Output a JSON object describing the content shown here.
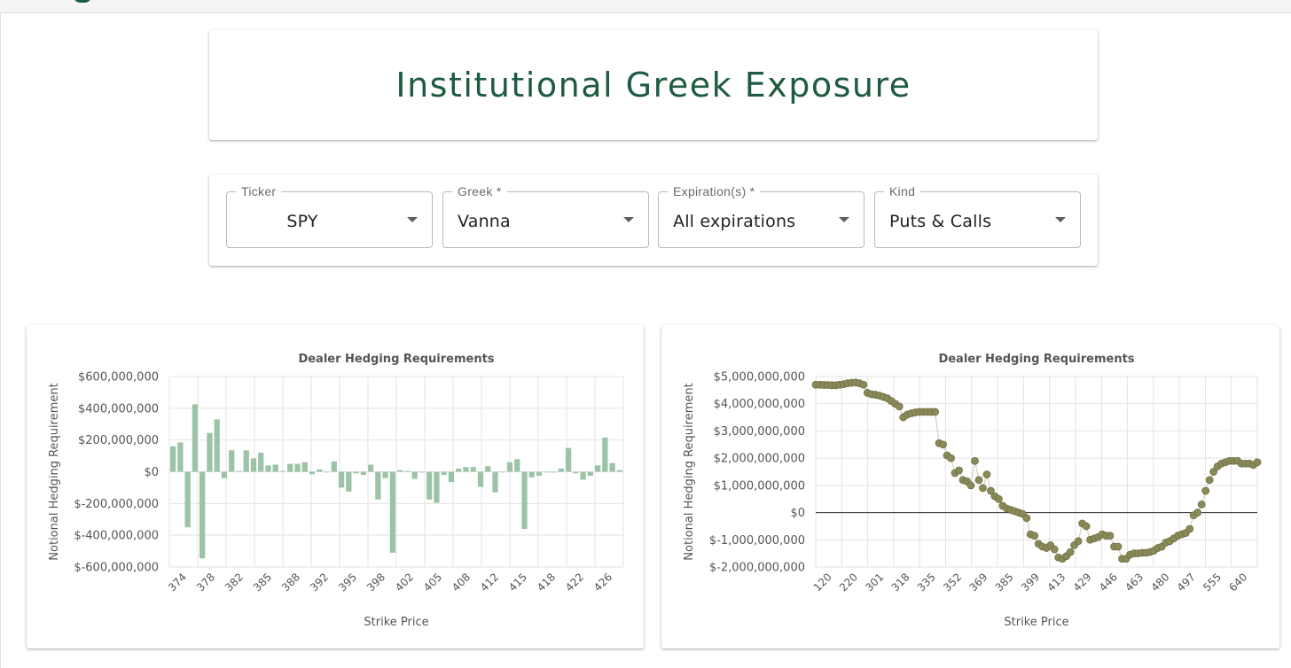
{
  "header": {
    "title": "Institutional Greek Exposure"
  },
  "filters": [
    {
      "label": "Ticker",
      "value": "SPY"
    },
    {
      "label": "Greek *",
      "value": "Vanna"
    },
    {
      "label": "Expiration(s) *",
      "value": "All expirations"
    },
    {
      "label": "Kind",
      "value": "Puts & Calls"
    }
  ],
  "colors": {
    "brand": "#1f5b40",
    "bar": "#9dc3a7",
    "dot": "#8a8a58",
    "grid": "#e3e3e3"
  },
  "chart_data": [
    {
      "type": "bar",
      "title": "Dealer Hedging Requirements",
      "xlabel": "Strike Price",
      "ylabel": "Notional Hedging Requirement",
      "ylim": [
        -600000000,
        600000000
      ],
      "grid": true,
      "yticks": [
        {
          "value": 600000000,
          "label": "$600,000,000"
        },
        {
          "value": 400000000,
          "label": "$400,000,000"
        },
        {
          "value": 200000000,
          "label": "$200,000,000"
        },
        {
          "value": 0,
          "label": "$0"
        },
        {
          "value": -200000000,
          "label": "$-200,000,000"
        },
        {
          "value": -400000000,
          "label": "$-400,000,000"
        },
        {
          "value": -600000000,
          "label": "$-600,000,000"
        }
      ],
      "xtick_labels": [
        "374",
        "378",
        "382",
        "385",
        "388",
        "392",
        "395",
        "398",
        "402",
        "405",
        "408",
        "412",
        "415",
        "418",
        "422",
        "426"
      ],
      "values": [
        160000000,
        185000000,
        -350000000,
        425000000,
        -545000000,
        245000000,
        330000000,
        -40000000,
        135000000,
        5000000,
        135000000,
        85000000,
        120000000,
        40000000,
        45000000,
        5000000,
        50000000,
        50000000,
        60000000,
        -15000000,
        15000000,
        0,
        65000000,
        -100000000,
        -125000000,
        -10000000,
        -20000000,
        45000000,
        -175000000,
        -40000000,
        -510000000,
        10000000,
        5000000,
        -45000000,
        -5000000,
        -175000000,
        -195000000,
        -20000000,
        -65000000,
        20000000,
        30000000,
        30000000,
        -95000000,
        35000000,
        -130000000,
        0,
        60000000,
        80000000,
        -360000000,
        -35000000,
        -25000000,
        0,
        -5000000,
        20000000,
        150000000,
        -10000000,
        -50000000,
        -25000000,
        40000000,
        215000000,
        55000000,
        10000000
      ]
    },
    {
      "type": "scatter",
      "title": "Dealer Hedging Requirements",
      "xlabel": "Strike Price",
      "ylabel": "Notional Hedging Requirement",
      "ylim": [
        -2000000000,
        5000000000
      ],
      "grid": true,
      "yticks": [
        {
          "value": 5000000000,
          "label": "$5,000,000,000"
        },
        {
          "value": 4000000000,
          "label": "$4,000,000,000"
        },
        {
          "value": 3000000000,
          "label": "$3,000,000,000"
        },
        {
          "value": 2000000000,
          "label": "$2,000,000,000"
        },
        {
          "value": 1000000000,
          "label": "$1,000,000,000"
        },
        {
          "value": 0,
          "label": "$0"
        },
        {
          "value": -1000000000,
          "label": "$-1,000,000,000"
        },
        {
          "value": -2000000000,
          "label": "$-2,000,000,000"
        }
      ],
      "xtick_labels": [
        "120",
        "220",
        "301",
        "318",
        "335",
        "352",
        "369",
        "385",
        "399",
        "413",
        "429",
        "446",
        "463",
        "480",
        "497",
        "555",
        "640"
      ],
      "values": [
        4700000000,
        4700000000,
        4690000000,
        4690000000,
        4680000000,
        4680000000,
        4700000000,
        4720000000,
        4750000000,
        4770000000,
        4780000000,
        4750000000,
        4700000000,
        4400000000,
        4350000000,
        4330000000,
        4300000000,
        4250000000,
        4200000000,
        4100000000,
        4000000000,
        3900000000,
        3500000000,
        3600000000,
        3650000000,
        3680000000,
        3700000000,
        3700000000,
        3700000000,
        3700000000,
        3700000000,
        2550000000,
        2500000000,
        2100000000,
        2000000000,
        1450000000,
        1550000000,
        1200000000,
        1150000000,
        1000000000,
        1900000000,
        1200000000,
        900000000,
        1400000000,
        800000000,
        600000000,
        500000000,
        250000000,
        150000000,
        100000000,
        50000000,
        0,
        -50000000,
        -200000000,
        -800000000,
        -850000000,
        -1150000000,
        -1250000000,
        -1300000000,
        -1200000000,
        -1350000000,
        -1650000000,
        -1700000000,
        -1600000000,
        -1450000000,
        -1200000000,
        -1050000000,
        -400000000,
        -500000000,
        -1000000000,
        -950000000,
        -900000000,
        -800000000,
        -850000000,
        -850000000,
        -1250000000,
        -1250000000,
        -1700000000,
        -1700000000,
        -1550000000,
        -1500000000,
        -1500000000,
        -1480000000,
        -1480000000,
        -1450000000,
        -1400000000,
        -1300000000,
        -1250000000,
        -1100000000,
        -1050000000,
        -950000000,
        -850000000,
        -800000000,
        -750000000,
        -600000000,
        -100000000,
        0,
        300000000,
        800000000,
        1200000000,
        1500000000,
        1700000000,
        1800000000,
        1850000000,
        1900000000,
        1900000000,
        1900000000,
        1800000000,
        1800000000,
        1800000000,
        1750000000,
        1850000000
      ]
    }
  ]
}
